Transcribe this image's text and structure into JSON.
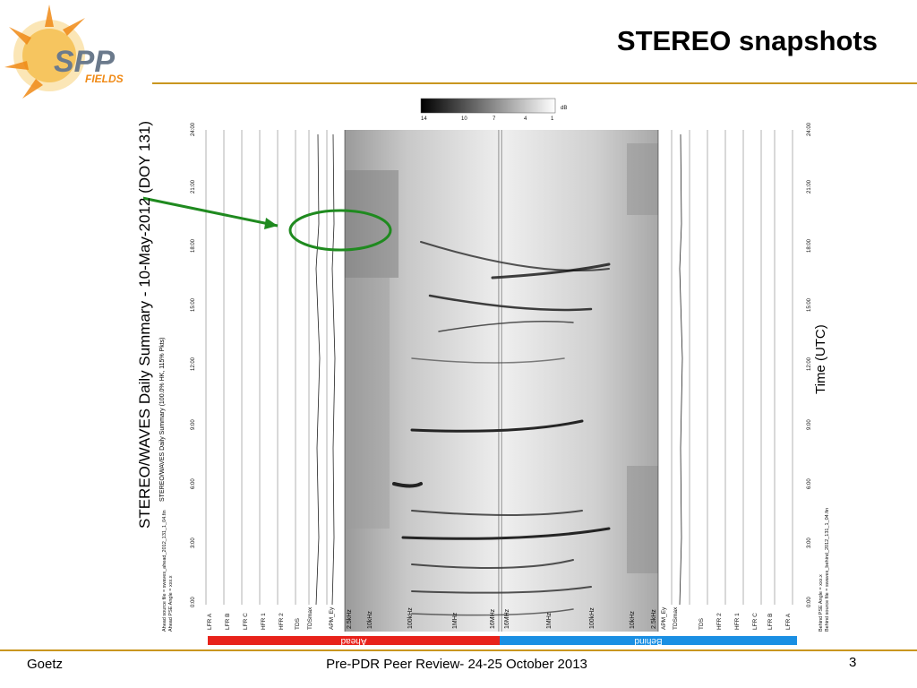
{
  "title": "STEREO snapshots",
  "logo": {
    "main": "SPP",
    "sub": "FIELDS"
  },
  "footer": {
    "author": "Goetz",
    "center": "Pre-PDR Peer Review- 24-25 October 2013",
    "page": "3"
  },
  "figure": {
    "title": "STEREO/WAVES Daily Summary - 10-May-2012 (DOY 131)",
    "subtitle": "STEREO/WAVES Daily Summary (100.0% HK, 115% Pkts)",
    "time_label": "Time (UTC)",
    "ahead_label": "Ahead",
    "behind_label": "Behind",
    "ahead_source": "Ahead source file = swaves_ahead_2012_131_1_04.fin",
    "ahead_pse": "Ahead PSE Angle = xxx.x",
    "behind_source": "Behind source file = swaves_behind_2012_131_1_04.fin",
    "behind_pse": "Behind PSE Angle = xxx.x",
    "colorbar_unit": "dB",
    "colorbar_ticks": [
      "14",
      "10",
      "7",
      "4",
      "1"
    ],
    "time_ticks": [
      "0:00",
      "3:00",
      "6:00",
      "9:00",
      "12:00",
      "15:00",
      "18:00",
      "21:00",
      "24:00"
    ],
    "ahead_freq_ticks": [
      "2.5kHz",
      "10kHz",
      "100kHz",
      "1MHz",
      "16MHz"
    ],
    "behind_freq_ticks": [
      "16MHz",
      "1MHz",
      "100kHz",
      "10kHz",
      "2.5kHz"
    ],
    "ahead_channels": [
      "LFR A",
      "LFR B",
      "LFR C",
      "HFR 1",
      "HFR 2",
      "TDS",
      "TDSmax",
      "APM_Ey"
    ],
    "behind_channels": [
      "APM_Ey",
      "TDSmax",
      "TDS",
      "HFR 2",
      "HFR 1",
      "LFR C",
      "LFR B",
      "LFR A"
    ]
  },
  "colors": {
    "ahead": "#e8221b",
    "behind": "#1a8fe3",
    "arrow": "#1f8a1f",
    "rule": "#c9961f"
  }
}
